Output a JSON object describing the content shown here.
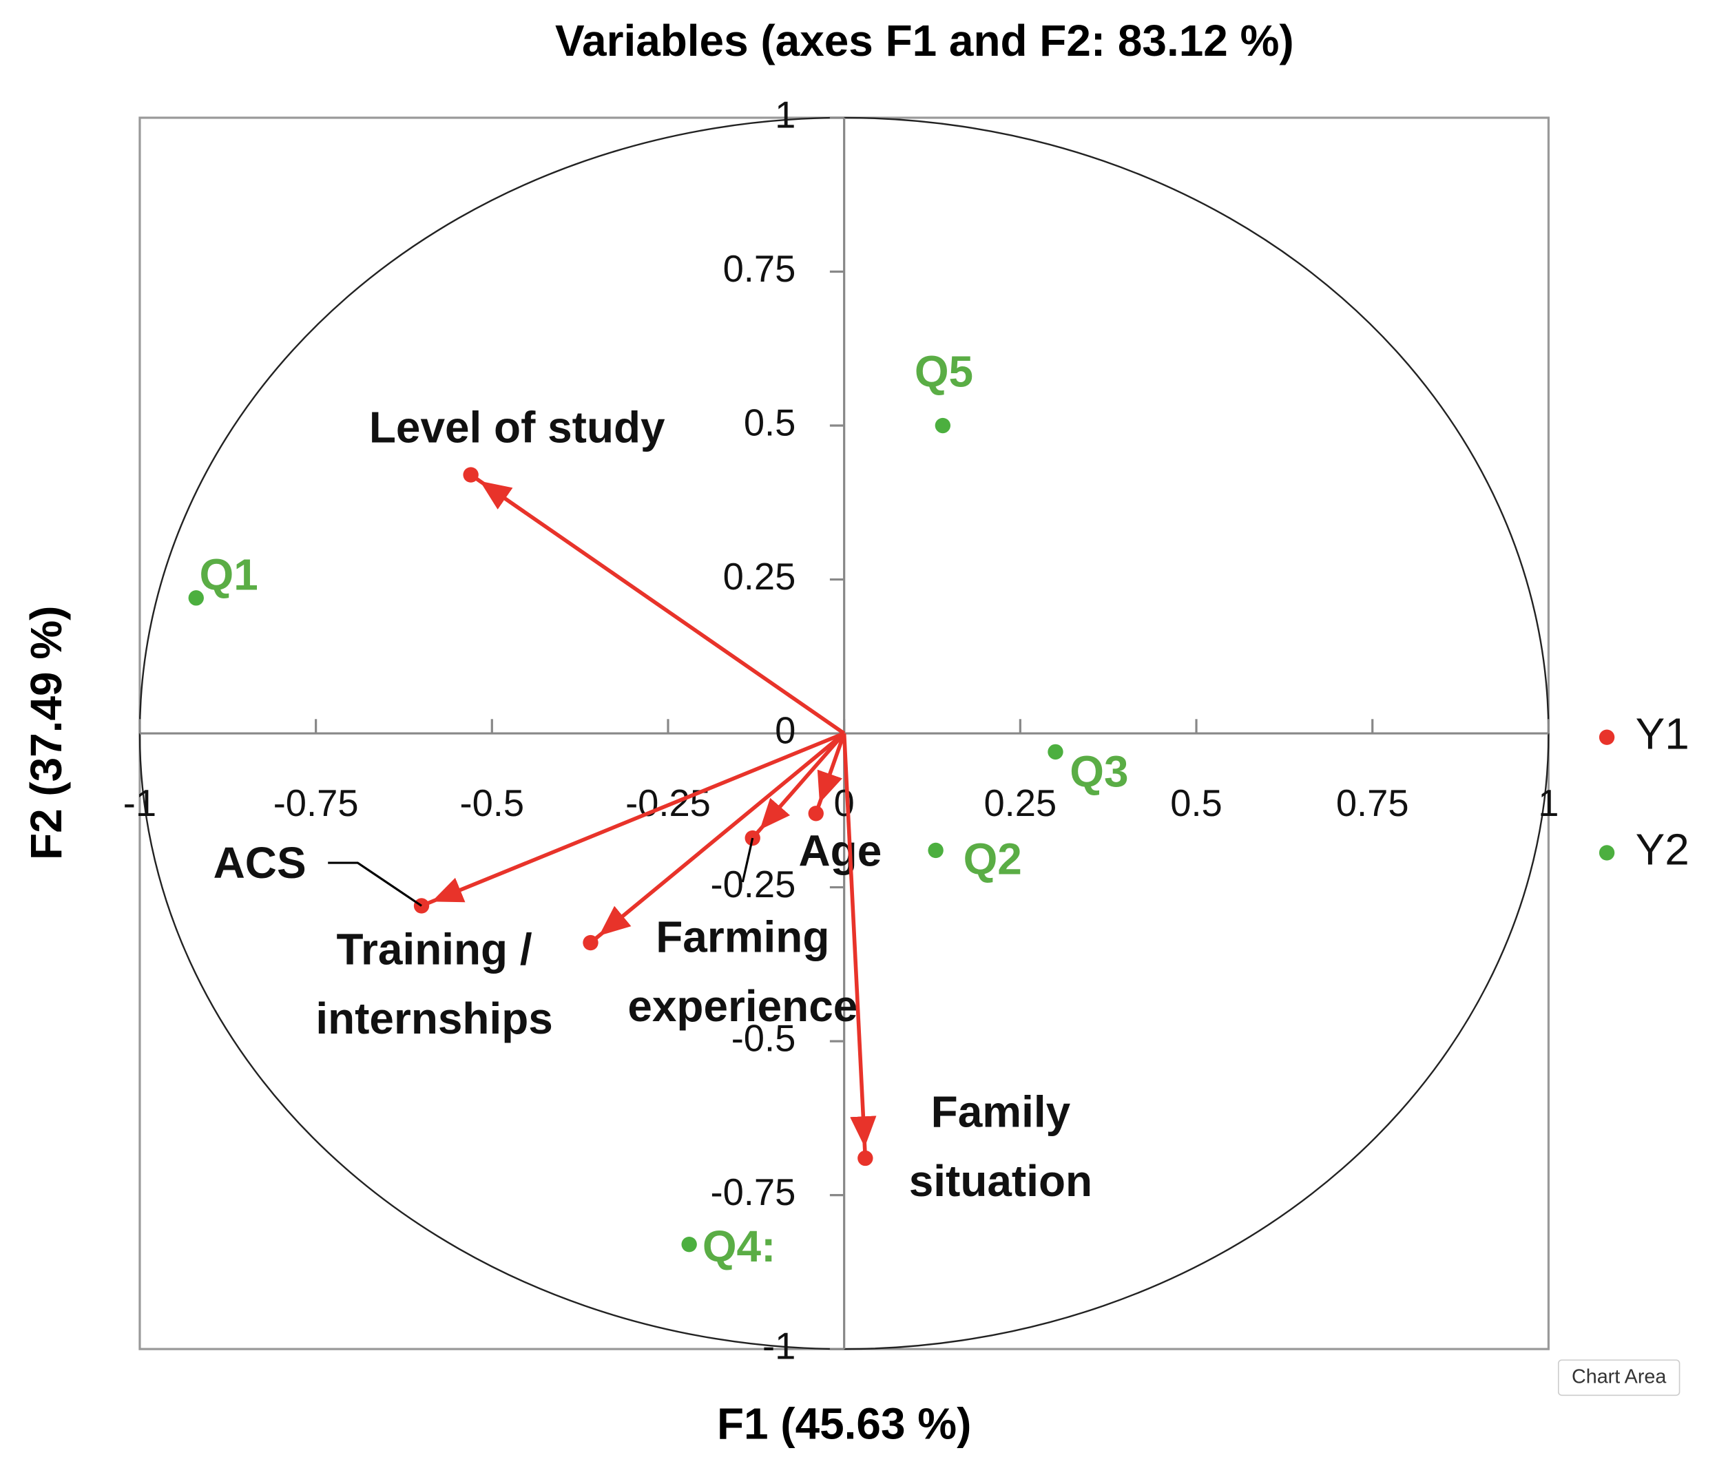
{
  "chart_data": {
    "type": "scatter",
    "title": "Variables (axes F1 and F2: 83.12 %)",
    "x_label": "F1 (45.63 %)",
    "y_label": "F2 (37.49 %)",
    "xlim": [
      -1,
      1
    ],
    "ylim": [
      -1,
      1
    ],
    "xticks": [
      -1,
      -0.75,
      -0.5,
      -0.25,
      0,
      0.25,
      0.5,
      0.75,
      1
    ],
    "yticks": [
      -1,
      -0.75,
      -0.5,
      -0.25,
      0,
      0.25,
      0.5,
      0.75,
      1
    ],
    "series": [
      {
        "name": "Y1",
        "color": "#e8332a",
        "arrows": true,
        "labels": [
          [
            "Level of study"
          ],
          [
            "ACS"
          ],
          [
            "Training /",
            "internships"
          ],
          [
            "Farming",
            "experience"
          ],
          [
            "Age"
          ],
          [
            "Family",
            "situation"
          ]
        ],
        "x": [
          -0.53,
          -0.6,
          -0.36,
          -0.13,
          -0.04,
          0.03
        ],
        "values": [
          0.42,
          -0.28,
          -0.34,
          -0.17,
          -0.13,
          -0.69
        ]
      },
      {
        "name": "Y2",
        "color": "#4caf3f",
        "label_color": "#5aad45",
        "labels": [
          [
            "Q1"
          ],
          [
            "Q2"
          ],
          [
            "Q3"
          ],
          [
            "Q4:"
          ],
          [
            "Q5"
          ]
        ],
        "x": [
          -0.92,
          0.13,
          0.3,
          -0.22,
          0.14
        ],
        "values": [
          0.22,
          -0.19,
          -0.03,
          -0.83,
          0.5
        ]
      }
    ],
    "tooltip": "Chart Area"
  }
}
